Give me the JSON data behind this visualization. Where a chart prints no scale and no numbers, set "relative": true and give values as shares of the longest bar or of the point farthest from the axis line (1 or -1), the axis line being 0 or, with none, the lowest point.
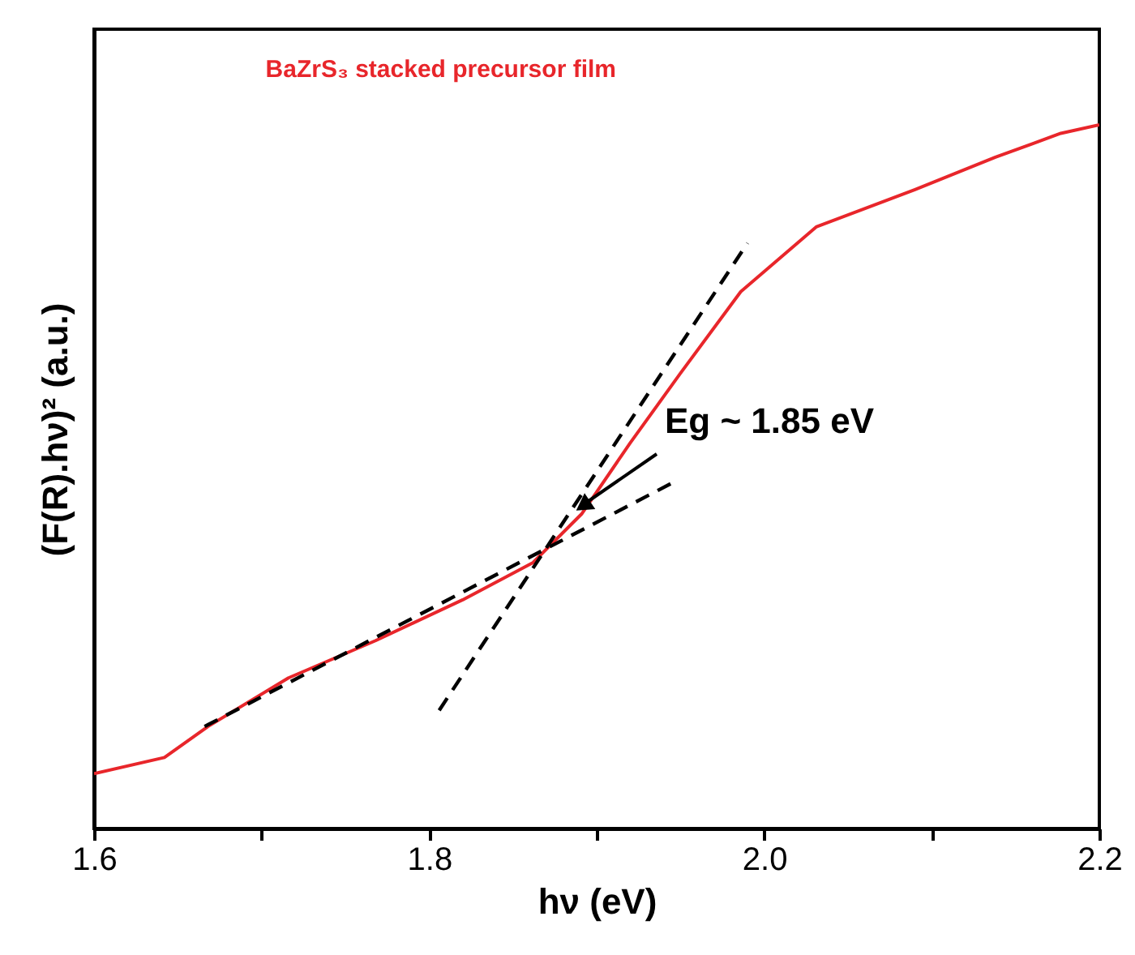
{
  "chart_data": {
    "type": "line",
    "xlabel": "hν (eV)",
    "ylabel": "(F(R).hν)² (a.u.)",
    "relative": true,
    "tick_labels": "x",
    "xlim": [
      1.6,
      2.2
    ],
    "xticks": [
      {
        "value": 1.6,
        "label": "1.6"
      },
      {
        "value": 1.7,
        "label": null
      },
      {
        "value": 1.8,
        "label": "1.8"
      },
      {
        "value": 1.9,
        "label": null
      },
      {
        "value": 2.0,
        "label": "2.0"
      },
      {
        "value": 2.1,
        "label": null
      },
      {
        "value": 2.2,
        "label": "2.2"
      }
    ],
    "annotations": [
      "Eg ~ 1.85 eV"
    ],
    "series": [
      {
        "name": "BaZrS₃ stacked precursor film",
        "color": "#e8262b",
        "line_style": "solid",
        "x": [
          1.6,
          1.642,
          1.668,
          1.716,
          1.768,
          1.82,
          1.862,
          1.891,
          1.92,
          1.95,
          1.986,
          2.031,
          2.09,
          2.138,
          2.177,
          2.2
        ],
        "values": [
          0.078,
          0.101,
          0.145,
          0.214,
          0.267,
          0.325,
          0.378,
          0.447,
          0.548,
          0.647,
          0.763,
          0.855,
          0.908,
          0.954,
          0.988,
          1.0
        ]
      },
      {
        "color": "#000000",
        "line_style": "dashed",
        "x": [
          1.666,
          1.945
        ],
        "values": [
          0.145,
          0.491
        ]
      },
      {
        "color": "#000000",
        "line_style": "dashed",
        "x": [
          1.806,
          1.99
        ],
        "values": [
          0.168,
          0.832
        ]
      }
    ]
  }
}
